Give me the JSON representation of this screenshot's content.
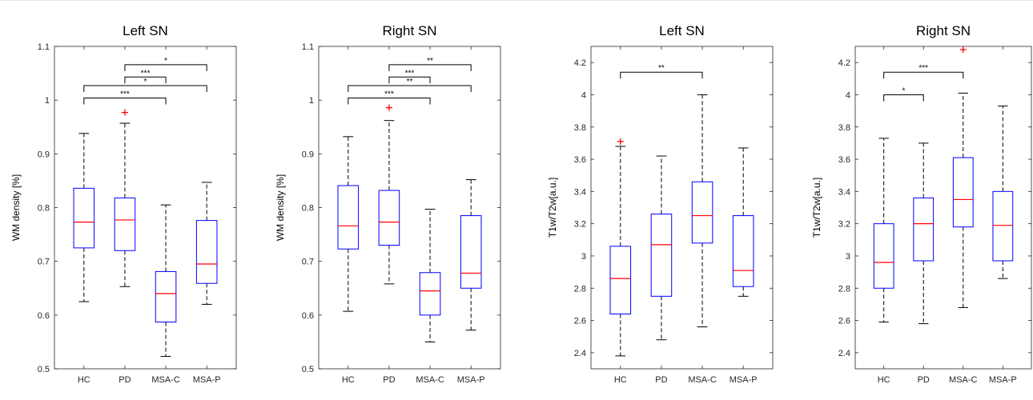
{
  "chart_data": [
    {
      "type": "box",
      "title": "Left SN",
      "ylabel": "WM density [%]",
      "categories": [
        "HC",
        "PD",
        "MSA-C",
        "MSA-P"
      ],
      "ylim": [
        0.5,
        1.1
      ],
      "yticks": [
        "0.5",
        "0.6",
        "0.7",
        "0.8",
        "0.9",
        "1",
        "1.1"
      ],
      "boxes": [
        {
          "whisker_low": 0.625,
          "q1": 0.725,
          "median": 0.773,
          "q3": 0.836,
          "whisker_high": 0.938,
          "outliers": []
        },
        {
          "whisker_low": 0.653,
          "q1": 0.72,
          "median": 0.777,
          "q3": 0.818,
          "whisker_high": 0.957,
          "outliers": [
            0.977
          ]
        },
        {
          "whisker_low": 0.523,
          "q1": 0.587,
          "median": 0.64,
          "q3": 0.681,
          "whisker_high": 0.805,
          "outliers": []
        },
        {
          "whisker_low": 0.62,
          "q1": 0.659,
          "median": 0.695,
          "q3": 0.776,
          "whisker_high": 0.847,
          "outliers": []
        }
      ],
      "significance": [
        {
          "from": 1,
          "to": 3,
          "y": 1.066,
          "label": "*"
        },
        {
          "from": 1,
          "to": 2,
          "y": 1.043,
          "label": "***"
        },
        {
          "from": 0,
          "to": 3,
          "y": 1.027,
          "label": "*"
        },
        {
          "from": 0,
          "to": 2,
          "y": 1.004,
          "label": "***"
        }
      ]
    },
    {
      "type": "box",
      "title": "Right SN",
      "ylabel": "WM density [%]",
      "categories": [
        "HC",
        "PD",
        "MSA-C",
        "MSA-P"
      ],
      "ylim": [
        0.5,
        1.1
      ],
      "yticks": [
        "0.5",
        "0.6",
        "0.7",
        "0.8",
        "0.9",
        "1",
        "1.1"
      ],
      "boxes": [
        {
          "whisker_low": 0.607,
          "q1": 0.723,
          "median": 0.766,
          "q3": 0.841,
          "whisker_high": 0.932,
          "outliers": []
        },
        {
          "whisker_low": 0.658,
          "q1": 0.73,
          "median": 0.773,
          "q3": 0.832,
          "whisker_high": 0.962,
          "outliers": [
            0.986
          ]
        },
        {
          "whisker_low": 0.55,
          "q1": 0.6,
          "median": 0.645,
          "q3": 0.679,
          "whisker_high": 0.797,
          "outliers": []
        },
        {
          "whisker_low": 0.572,
          "q1": 0.65,
          "median": 0.678,
          "q3": 0.785,
          "whisker_high": 0.852,
          "outliers": []
        }
      ],
      "significance": [
        {
          "from": 1,
          "to": 3,
          "y": 1.066,
          "label": "**"
        },
        {
          "from": 1,
          "to": 2,
          "y": 1.043,
          "label": "***"
        },
        {
          "from": 0,
          "to": 3,
          "y": 1.027,
          "label": "**"
        },
        {
          "from": 0,
          "to": 2,
          "y": 1.004,
          "label": "***"
        }
      ]
    },
    {
      "type": "box",
      "title": "Left SN",
      "ylabel": "T1w/T2w[a.u.]",
      "categories": [
        "HC",
        "PD",
        "MSA-C",
        "MSA-P"
      ],
      "ylim": [
        2.3,
        4.3
      ],
      "yticks": [
        "2.4",
        "2.6",
        "2.8",
        "3",
        "3.2",
        "3.4",
        "3.6",
        "3.8",
        "4",
        "4.2"
      ],
      "boxes": [
        {
          "whisker_low": 2.38,
          "q1": 2.64,
          "median": 2.86,
          "q3": 3.06,
          "whisker_high": 3.68,
          "outliers": [
            3.71
          ]
        },
        {
          "whisker_low": 2.48,
          "q1": 2.75,
          "median": 3.07,
          "q3": 3.26,
          "whisker_high": 3.62,
          "outliers": []
        },
        {
          "whisker_low": 2.56,
          "q1": 3.08,
          "median": 3.25,
          "q3": 3.46,
          "whisker_high": 4.0,
          "outliers": []
        },
        {
          "whisker_low": 2.75,
          "q1": 2.81,
          "median": 2.91,
          "q3": 3.25,
          "whisker_high": 3.67,
          "outliers": []
        }
      ],
      "significance": [
        {
          "from": 0,
          "to": 2,
          "y": 4.14,
          "label": "**"
        }
      ]
    },
    {
      "type": "box",
      "title": "Right SN",
      "ylabel": "T1w/T2w[a.u.]",
      "categories": [
        "HC",
        "PD",
        "MSA-C",
        "MSA-P"
      ],
      "ylim": [
        2.3,
        4.3
      ],
      "yticks": [
        "2.4",
        "2.6",
        "2.8",
        "3",
        "3.2",
        "3.4",
        "3.6",
        "3.8",
        "4",
        "4.2"
      ],
      "boxes": [
        {
          "whisker_low": 2.59,
          "q1": 2.8,
          "median": 2.96,
          "q3": 3.2,
          "whisker_high": 3.73,
          "outliers": []
        },
        {
          "whisker_low": 2.58,
          "q1": 2.97,
          "median": 3.2,
          "q3": 3.36,
          "whisker_high": 3.7,
          "outliers": []
        },
        {
          "whisker_low": 2.68,
          "q1": 3.18,
          "median": 3.35,
          "q3": 3.61,
          "whisker_high": 4.01,
          "outliers": [
            4.28
          ]
        },
        {
          "whisker_low": 2.86,
          "q1": 2.97,
          "median": 3.19,
          "q3": 3.4,
          "whisker_high": 3.93,
          "outliers": []
        }
      ],
      "significance": [
        {
          "from": 0,
          "to": 2,
          "y": 4.14,
          "label": "***"
        },
        {
          "from": 0,
          "to": 1,
          "y": 4.0,
          "label": "*"
        }
      ]
    }
  ],
  "colors": {
    "box": "#0000ff",
    "median": "#ff0000",
    "outlier": "#ff0000",
    "whisker": "#000000",
    "axis": "#262626"
  }
}
